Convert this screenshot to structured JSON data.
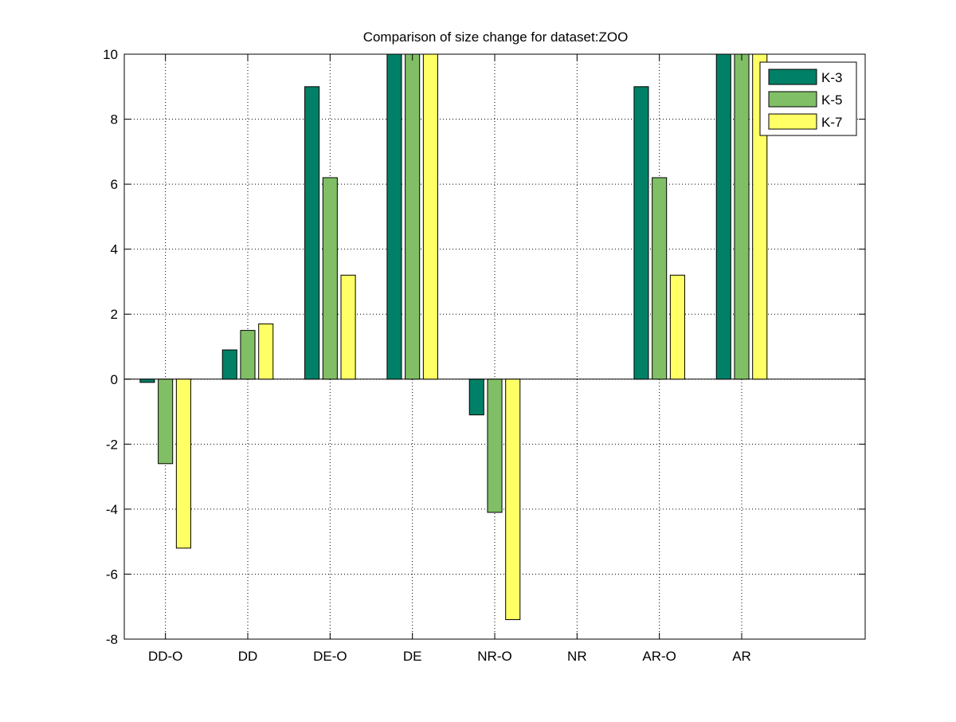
{
  "chart_data": {
    "type": "bar",
    "title": "Comparison of size change for dataset:ZOO",
    "xlabel": "",
    "ylabel": "",
    "categories": [
      "DD-O",
      "DD",
      "DE-O",
      "DE",
      "NR-O",
      "NR",
      "AR-O",
      "AR"
    ],
    "series": [
      {
        "name": "K-3",
        "color": "#008066",
        "values": [
          -0.1,
          0.9,
          9.0,
          10.0,
          -1.1,
          0.0,
          9.0,
          10.0
        ]
      },
      {
        "name": "K-5",
        "color": "#80BF66",
        "values": [
          -2.6,
          1.5,
          6.2,
          10.0,
          -4.1,
          0.0,
          6.2,
          10.0
        ]
      },
      {
        "name": "K-7",
        "color": "#FFFF66",
        "values": [
          -5.2,
          1.7,
          3.2,
          10.0,
          -7.4,
          0.0,
          3.2,
          10.0
        ]
      }
    ],
    "ylim": [
      -8,
      10
    ],
    "yticks": [
      -8,
      -6,
      -4,
      -2,
      0,
      2,
      4,
      6,
      8,
      10
    ],
    "grid": true,
    "legend_position": "top-right"
  }
}
